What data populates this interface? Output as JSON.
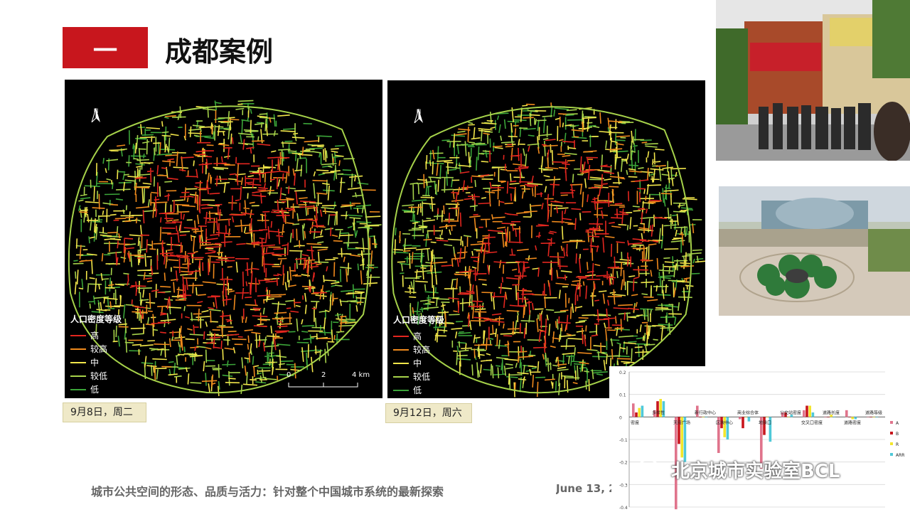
{
  "header": {
    "block_label": "一",
    "title": "成都案例"
  },
  "maps": [
    {
      "date": "9月8日，周二"
    },
    {
      "date": "9月12日，周六"
    }
  ],
  "legend": {
    "title": "人口密度等级",
    "items": [
      {
        "label": "高",
        "color": "#e3261f"
      },
      {
        "label": "较高",
        "color": "#f08a1c"
      },
      {
        "label": "中",
        "color": "#f2e64a"
      },
      {
        "label": "较低",
        "color": "#a6d24a"
      },
      {
        "label": "低",
        "color": "#3ba539"
      }
    ]
  },
  "scale_bar": {
    "ticks": [
      "0",
      "2",
      "4 km"
    ]
  },
  "north_arrow": {
    "label": "N"
  },
  "footer": {
    "text": "城市公共空间的形态、品质与活力：针对整个中国城市系统的最新探索",
    "date": "June 13, 2"
  },
  "watermark": {
    "text": "北京城市实验室BCL"
  },
  "chart_data": {
    "type": "bar",
    "ylim": [
      -0.4,
      0.2
    ],
    "yticks": [
      "0.2",
      "0.1",
      "0",
      "-0.1",
      "-0.2",
      "-0.3",
      "-0.4"
    ],
    "categories": [
      "密度",
      "多样性",
      "天府广场",
      "新行政中心",
      "区块中心",
      "商业综合体",
      "地铁口",
      "公交站密度",
      "交叉口密度",
      "道路长度",
      "道路密度",
      "道路等级"
    ],
    "series": [
      {
        "name": "A",
        "color": "#e0748c",
        "values": [
          0.06,
          0.03,
          -0.41,
          0.05,
          -0.16,
          -0.01,
          -0.23,
          0.02,
          0.03,
          0.0,
          0.03,
          0.0
        ]
      },
      {
        "name": "B",
        "color": "#c8161d",
        "values": [
          0.02,
          0.07,
          -0.12,
          0.0,
          -0.05,
          -0.05,
          -0.08,
          0.02,
          0.05,
          0.0,
          0.0,
          0.0
        ]
      },
      {
        "name": "R",
        "color": "#f3e62c",
        "values": [
          0.04,
          0.08,
          -0.18,
          0.0,
          -0.09,
          0.0,
          0.0,
          0.0,
          0.05,
          0.01,
          -0.01,
          0.0
        ]
      },
      {
        "name": "ARR",
        "color": "#4fc9d8",
        "values": [
          0.05,
          0.07,
          -0.2,
          0.0,
          -0.1,
          -0.02,
          -0.11,
          0.01,
          0.02,
          0.0,
          -0.01,
          0.0
        ]
      }
    ]
  }
}
